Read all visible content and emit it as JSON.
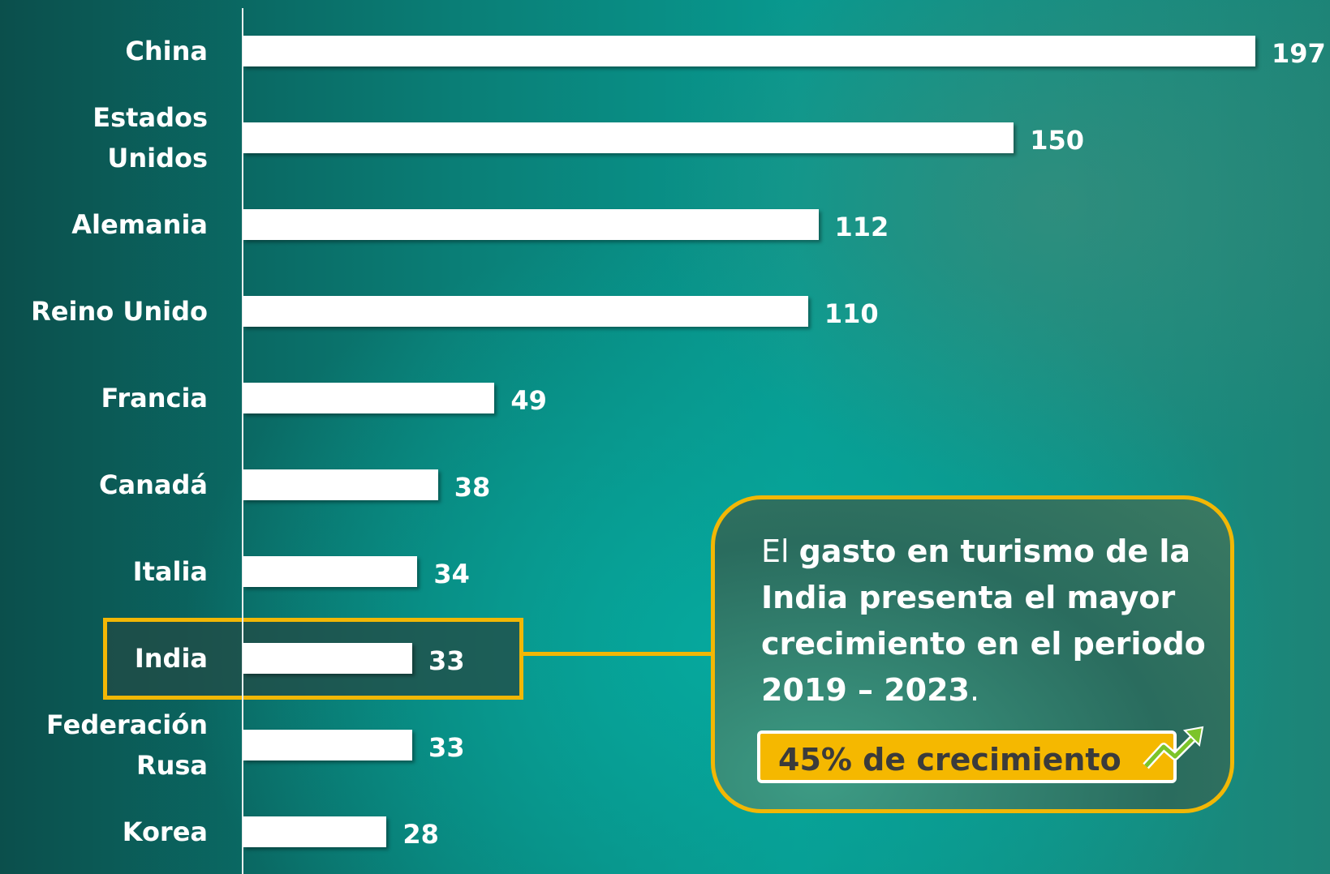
{
  "chart_data": {
    "type": "bar",
    "orientation": "horizontal",
    "categories": [
      "China",
      "Estados\nUnidos",
      "Alemania",
      "Reino Unido",
      "Francia",
      "Canadá",
      "Italia",
      "India",
      "Federación\nRusa",
      "Korea"
    ],
    "values": [
      197,
      150,
      112,
      110,
      49,
      38,
      34,
      33,
      33,
      28
    ],
    "color": "#ffffff",
    "highlight": "India",
    "highlight_color": "#f2b705",
    "annotation": {
      "parts": [
        {
          "text": "El ",
          "bold": false
        },
        {
          "text": "gasto en turismo de la India presenta el mayor crecimiento en el periodo 2019 – 2023",
          "bold": true
        },
        {
          "text": ".",
          "bold": false
        }
      ],
      "badge": "45% de crecimiento"
    }
  }
}
